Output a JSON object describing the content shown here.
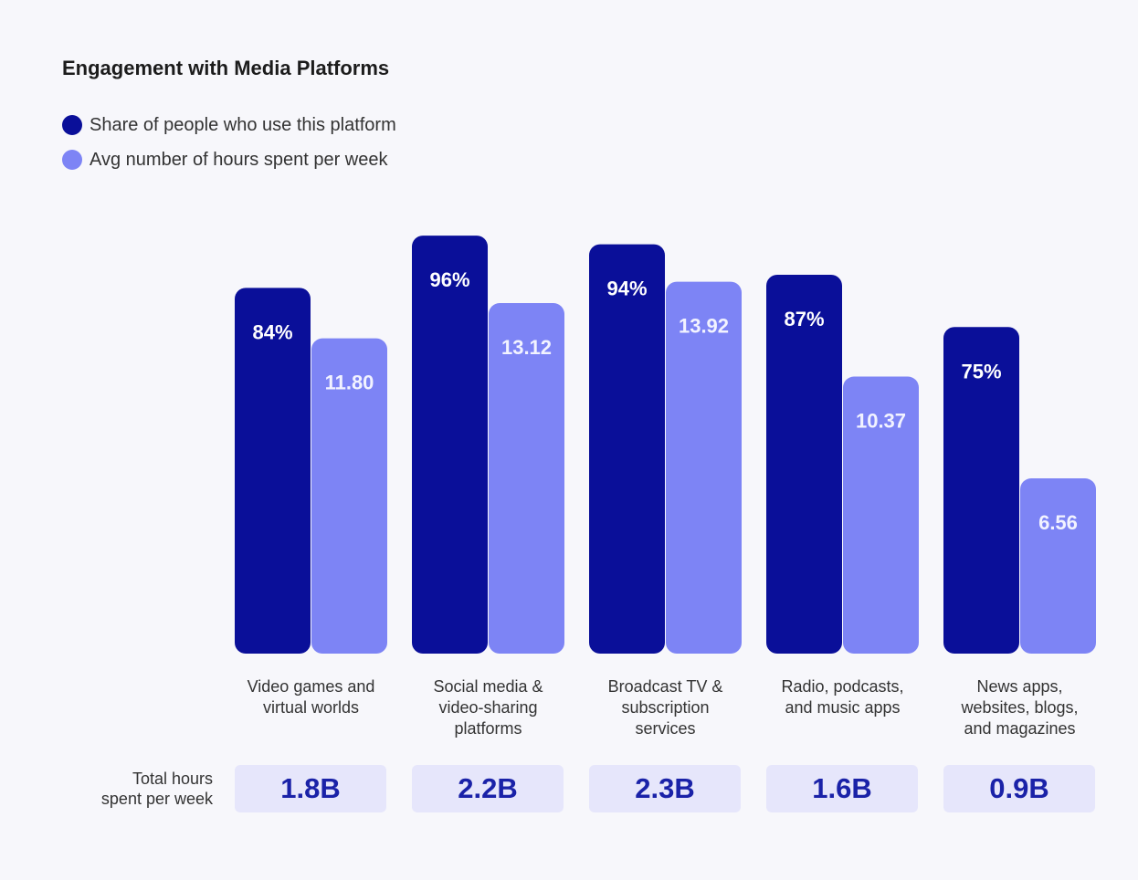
{
  "chart_data": {
    "type": "bar",
    "title": "Engagement with Media Platforms",
    "categories": [
      "Video games and virtual worlds",
      "Social media & video-sharing platforms",
      "Broadcast TV & subscription services",
      "Radio, podcasts, and music apps",
      "News apps, websites, blogs, and magazines"
    ],
    "category_lines": [
      [
        "Video games and",
        "virtual worlds"
      ],
      [
        "Social media &",
        "video-sharing",
        "platforms"
      ],
      [
        "Broadcast TV &",
        "subscription",
        "services"
      ],
      [
        "Radio, podcasts,",
        "and music apps"
      ],
      [
        "News apps,",
        "websites, blogs,",
        "and magazines"
      ]
    ],
    "series": [
      {
        "name": "Share of people who use this platform",
        "values": [
          84,
          96,
          94,
          87,
          75
        ],
        "labels": [
          "84%",
          "96%",
          "94%",
          "87%",
          "75%"
        ],
        "color": "#0a0f99"
      },
      {
        "name": "Avg number of hours spent per week",
        "values": [
          11.8,
          13.12,
          13.92,
          10.37,
          6.56
        ],
        "labels": [
          "11.80",
          "13.12",
          "13.92",
          "10.37",
          "6.56"
        ],
        "color": "#7d84f5"
      }
    ],
    "scales": {
      "share_ylim": [
        0,
        100
      ],
      "hours_ylim": [
        0,
        16.3
      ]
    },
    "total_hours_heading": [
      "Total hours",
      "spent per week"
    ],
    "total_hours": [
      "1.8B",
      "2.2B",
      "2.3B",
      "1.6B",
      "0.9B"
    ],
    "legend_position": "top-left",
    "grid": false
  },
  "colors": {
    "background": "#f7f7fb",
    "total_box_bg": "#e6e6fb",
    "total_text": "#1a22a8"
  }
}
